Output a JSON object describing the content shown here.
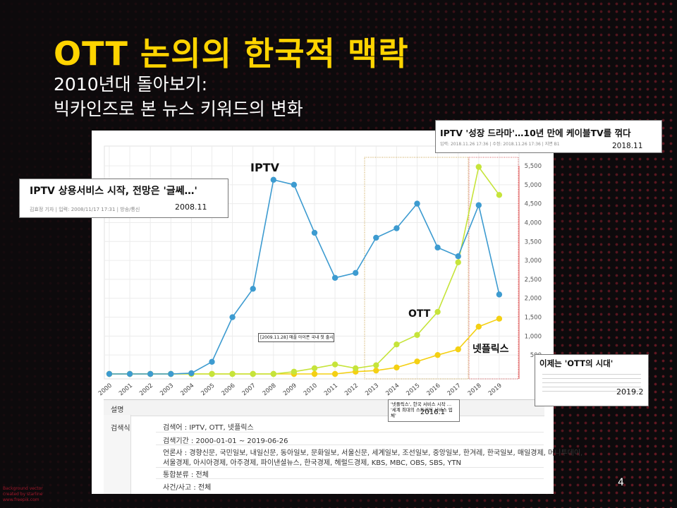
{
  "slide": {
    "title": "OTT 논의의 한국적 맥락",
    "subtitle_line1": "2010년대 돌아보기:",
    "subtitle_line2": "빅카인즈로 본 뉴스 키워드의 변화",
    "page_number": "4",
    "credit": "Background vector\ncreated by starline\nwww.freepik.com"
  },
  "colors": {
    "title": "#ffd400",
    "iptv": "#3d9bd0",
    "ott": "#c6e43a",
    "netflix": "#f4d013",
    "box_ott": "#c9a14a",
    "box_netflix": "#d55050"
  },
  "chart_data": {
    "type": "line",
    "x": [
      "2000",
      "2001",
      "2002",
      "2003",
      "2004",
      "2005",
      "2006",
      "2007",
      "2008",
      "2009",
      "2010",
      "2011",
      "2012",
      "2013",
      "2014",
      "2015",
      "2016",
      "2017",
      "2018",
      "2019"
    ],
    "ylim": [
      0,
      5500
    ],
    "yticks": [
      "0",
      "500",
      "1,000",
      "1,500",
      "2,000",
      "2,500",
      "3,000",
      "3,500",
      "4,000",
      "4,500",
      "5,000",
      "5,500"
    ],
    "grid": true,
    "series": [
      {
        "name": "IPTV",
        "color": "#3d9bd0",
        "values": [
          0,
          0,
          0,
          0,
          20,
          320,
          1500,
          2250,
          5130,
          5000,
          3730,
          2540,
          2670,
          3600,
          3850,
          4500,
          3340,
          3110,
          4460,
          2100
        ]
      },
      {
        "name": "OTT",
        "color": "#c6e43a",
        "values": [
          0,
          0,
          0,
          0,
          0,
          0,
          0,
          0,
          0,
          60,
          150,
          250,
          150,
          230,
          780,
          1030,
          1640,
          2950,
          5470,
          4730
        ]
      },
      {
        "name": "넷플릭스",
        "color": "#f4d013",
        "values": [
          0,
          0,
          0,
          0,
          0,
          0,
          0,
          0,
          0,
          0,
          0,
          0,
          60,
          90,
          170,
          330,
          500,
          650,
          1250,
          1460
        ]
      }
    ]
  },
  "callouts": {
    "iptv2008": {
      "headline": "IPTV 상용서비스 시작, 전망은 '글쎄…'",
      "meta": "김효정 기자  |  입력: 2008/11/17 17:31  |  방송/통신",
      "date": "2008.11"
    },
    "iptv2018": {
      "headline": "IPTV '성장 드라마'…10년 만에 케이블TV를 꺾다",
      "meta": "입력: 2018.11.26 17:36  |  수정: 2018.11.26 17:36  |  지면 B1",
      "date": "2018.11"
    },
    "ott2019": {
      "headline": "이제는 'OTT의 시대'",
      "date": "2019.2"
    },
    "netflix2016": {
      "headline": "'넷플릭스', 한국 서비스 시작 … '세계 최대의 스트리밍 서비스 업체'",
      "date": "2016.1"
    },
    "apple": {
      "text": "[2009.11.28] 애플 아이폰 국내 첫 출시"
    }
  },
  "info": {
    "header": "설명",
    "label": "검색식",
    "query": "검색어 : IPTV, OTT, 넷플릭스",
    "period": "검색기간 : 2000-01-01 ~ 2019-06-26",
    "media1": "언론사 : 경향신문, 국민일보, 내일신문, 동아일보, 문화일보, 서울신문, 세계일보, 조선일보, 중앙일보, 한겨레, 한국일보, 매일경제, 머니투데이,",
    "media2": "서울경제, 아시아경제, 아주경제, 파이낸셜뉴스, 한국경제, 헤럴드경제, KBS, MBC, OBS, SBS, YTN",
    "category": "통합분류 : 전체",
    "incident": "사건/사고 : 전체"
  }
}
